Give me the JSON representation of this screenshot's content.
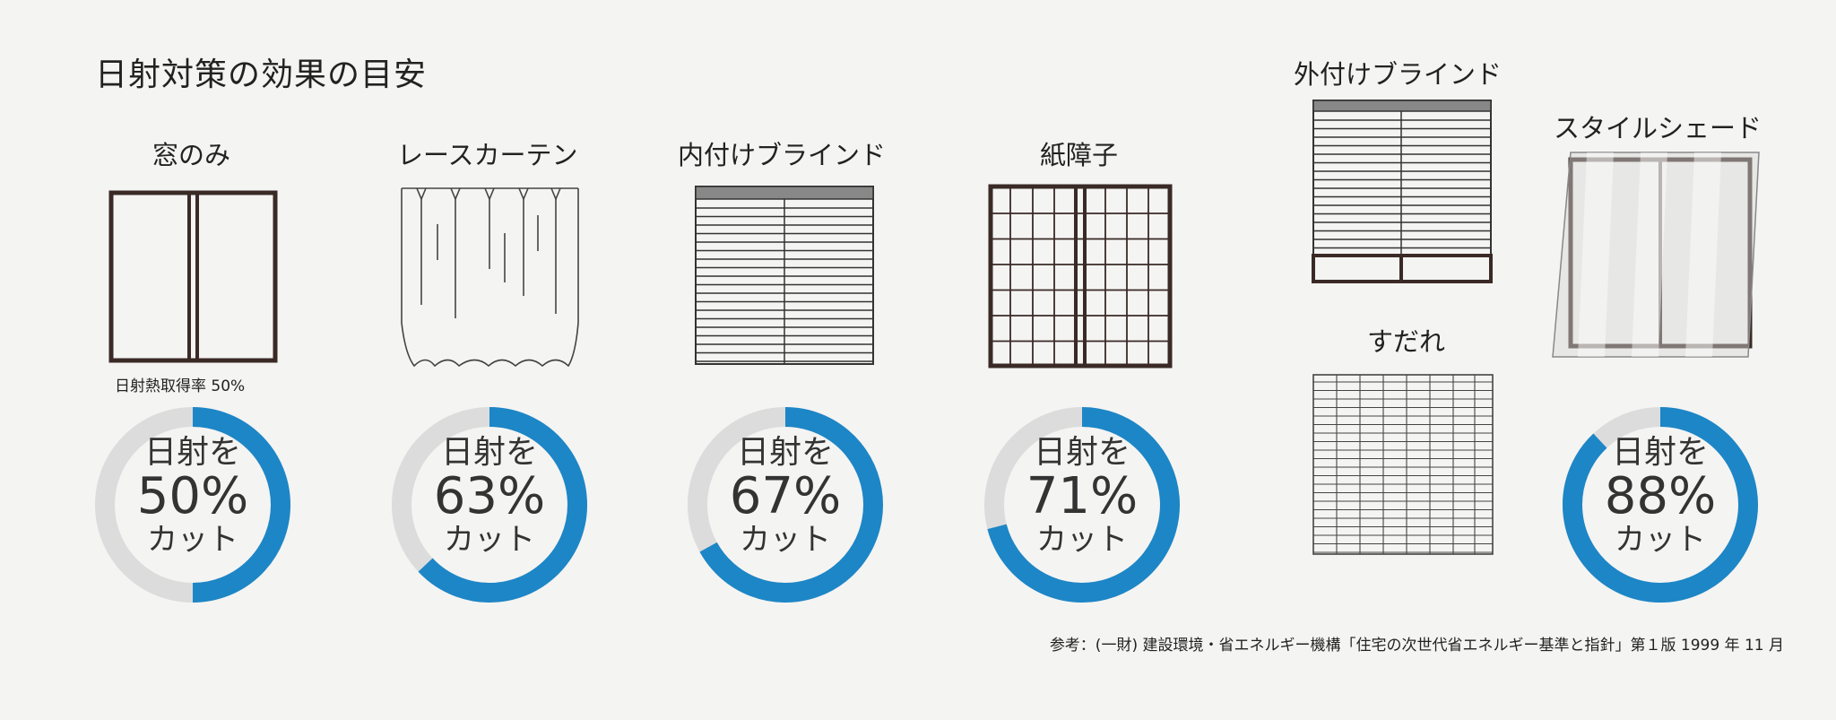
{
  "title": "日射対策の効果の目安",
  "note_label": "日射熱取得率 50%",
  "source": "参考：(一財) 建設環境・省エネルギー機構「住宅の次世代省エネルギー基準と指針」第１版 1999 年 11 月",
  "colors": {
    "ring": "#1d86c6",
    "track": "#dcdcdc",
    "frame": "#3a2a26"
  },
  "items": [
    {
      "label": "窓のみ",
      "top_text": "日射を",
      "percent": "50%",
      "bottom_text": "カット",
      "value": 50
    },
    {
      "label": "レースカーテン",
      "top_text": "日射を",
      "percent": "63%",
      "bottom_text": "カット",
      "value": 63
    },
    {
      "label": "内付けブラインド",
      "top_text": "日射を",
      "percent": "67%",
      "bottom_text": "カット",
      "value": 67
    },
    {
      "label": "紙障子",
      "top_text": "日射を",
      "percent": "71%",
      "bottom_text": "カット",
      "value": 71
    },
    {
      "label": "外付けブラインド"
    },
    {
      "label": "すだれ"
    },
    {
      "label": "スタイルシェード",
      "top_text": "日射を",
      "percent": "88%",
      "bottom_text": "カット",
      "value": 88
    }
  ]
}
